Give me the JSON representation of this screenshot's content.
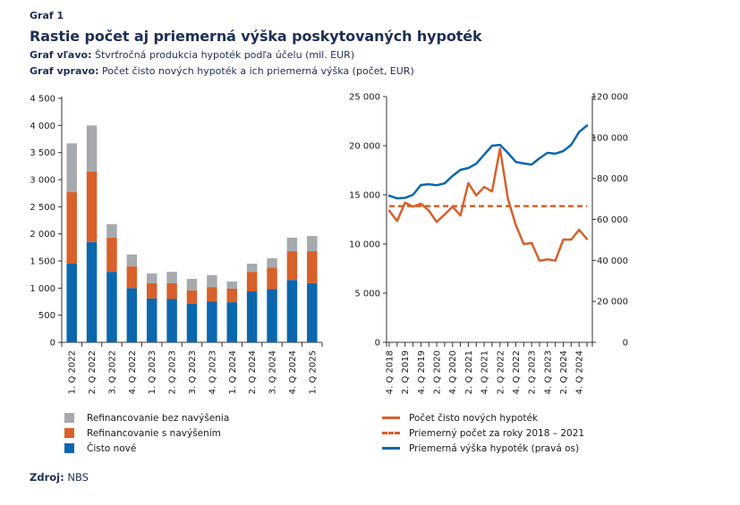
{
  "header": {
    "graf_label": "Graf 1",
    "title": "Rastie počet aj priemerná výška poskytovaných hypoték",
    "sub_left_bold": "Graf vľavo:",
    "sub_left_text": " Štvrťročná produkcia hypoték podľa účelu (mil. EUR)",
    "sub_right_bold": "Graf vpravo:",
    "sub_right_text": " Počet čisto nových hypoték a ich priemerná výška (počet, EUR)"
  },
  "colors": {
    "gray": "#a6aaad",
    "orange": "#d8602a",
    "blue": "#0a67ad",
    "axis": "#333333"
  },
  "chart_data": [
    {
      "type": "bar",
      "stacked": true,
      "title": "Štvrťročná produkcia hypoték podľa účelu (mil. EUR)",
      "xlabel": "",
      "ylabel": "",
      "ylim": [
        0,
        4500
      ],
      "yticks": [
        0,
        500,
        1000,
        1500,
        2000,
        2500,
        3000,
        3500,
        4000,
        4500
      ],
      "ytick_labels": [
        "0",
        "500",
        "1 000",
        "1 500",
        "2 000",
        "2 500",
        "3 000",
        "3 500",
        "4 000",
        "4 500"
      ],
      "categories": [
        "1. Q 2022",
        "2. Q 2022",
        "3. Q 2022",
        "4. Q 2022",
        "1. Q 2023",
        "2. Q 2023",
        "3. Q 2023",
        "4. Q 2023",
        "1. Q 2024",
        "2. Q 2024",
        "3. Q 2024",
        "4. Q 2024",
        "1. Q 2025"
      ],
      "series": [
        {
          "name": "Čisto nové",
          "color_key": "blue",
          "values": [
            1450,
            1850,
            1300,
            1000,
            810,
            800,
            710,
            750,
            740,
            940,
            980,
            1150,
            1090
          ]
        },
        {
          "name": "Refinancovanie s navýšením",
          "color_key": "orange",
          "values": [
            1320,
            1300,
            630,
            400,
            280,
            290,
            250,
            270,
            250,
            360,
            400,
            530,
            590
          ]
        },
        {
          "name": "Refinancovanie bez navýšenia",
          "color_key": "gray",
          "values": [
            900,
            850,
            250,
            220,
            180,
            210,
            210,
            220,
            130,
            150,
            170,
            250,
            280
          ]
        }
      ],
      "legend_order": [
        "Refinancovanie bez navýšenia",
        "Refinancovanie s navýšením",
        "Čisto nové"
      ],
      "legend_position": "bottom-left",
      "grid": false
    },
    {
      "type": "line",
      "title": "Počet čisto nových hypoték a ich priemerná výška (počet, EUR)",
      "x": [
        "4. Q 2018",
        "1. Q 2019",
        "2. Q 2019",
        "3. Q 2019",
        "4. Q 2019",
        "1. Q 2020",
        "2. Q 2020",
        "3. Q 2020",
        "4. Q 2020",
        "1. Q 2021",
        "2. Q 2021",
        "3. Q 2021",
        "4. Q 2021",
        "1. Q 2022",
        "2. Q 2022",
        "3. Q 2022",
        "4. Q 2022",
        "1. Q 2023",
        "2. Q 2023",
        "3. Q 2023",
        "4. Q 2023",
        "1. Q 2024",
        "2. Q 2024",
        "3. Q 2024",
        "4. Q 2024",
        "1. Q 2025"
      ],
      "x_tick_labels_shown": [
        "4. Q 2018",
        "2. Q 2019",
        "4. Q 2019",
        "2. Q 2020",
        "4. Q 2020",
        "2. Q 2021",
        "4. Q 2021",
        "2. Q 2022",
        "4. Q 2022",
        "2. Q 2023",
        "4. Q 2023",
        "2. Q 2024",
        "4. Q 2024"
      ],
      "ylim_left": [
        0,
        25000
      ],
      "yticks_left_labels": [
        "0",
        "5 000",
        "10 000",
        "15 000",
        "20 000",
        "25 000"
      ],
      "yticks_left": [
        0,
        5000,
        10000,
        15000,
        20000,
        25000
      ],
      "ylim_right": [
        0,
        120000
      ],
      "yticks_right_labels": [
        "0",
        "20 000",
        "40 000",
        "60 000",
        "80 000",
        "100 000",
        "120 000"
      ],
      "yticks_right": [
        0,
        20000,
        40000,
        60000,
        80000,
        100000,
        120000
      ],
      "series": [
        {
          "name": "Počet čisto nových hypoték",
          "axis": "left",
          "color_key": "orange",
          "style": "solid",
          "values": [
            13400,
            12350,
            14200,
            13800,
            14100,
            13400,
            12250,
            13000,
            13800,
            12900,
            16200,
            14950,
            15800,
            15350,
            19700,
            14600,
            11950,
            10000,
            10100,
            8300,
            8450,
            8300,
            10450,
            10450,
            11450,
            10500
          ]
        },
        {
          "name": "Priemerný počet za roky 2018 - 2021",
          "axis": "left",
          "color_key": "orange",
          "style": "dashed",
          "constant": 13850
        },
        {
          "name": "Priemerná výška hypoték (pravá os)",
          "axis": "right",
          "color_key": "blue",
          "style": "solid",
          "values": [
            71600,
            70300,
            70500,
            72000,
            76800,
            77200,
            76700,
            77600,
            81200,
            84200,
            85100,
            87200,
            91600,
            96000,
            96400,
            92500,
            88100,
            87300,
            86800,
            89900,
            92500,
            92100,
            93400,
            96400,
            102700,
            105800
          ]
        }
      ],
      "legend_position": "bottom",
      "grid": false
    }
  ],
  "legend_right": [
    "Počet čisto nových hypoték",
    "Priemerný počet za roky 2018 – 2021",
    "Priemerná výška hypoték (pravá os)"
  ],
  "source": {
    "label": "Zdroj:",
    "text": " NBS"
  }
}
